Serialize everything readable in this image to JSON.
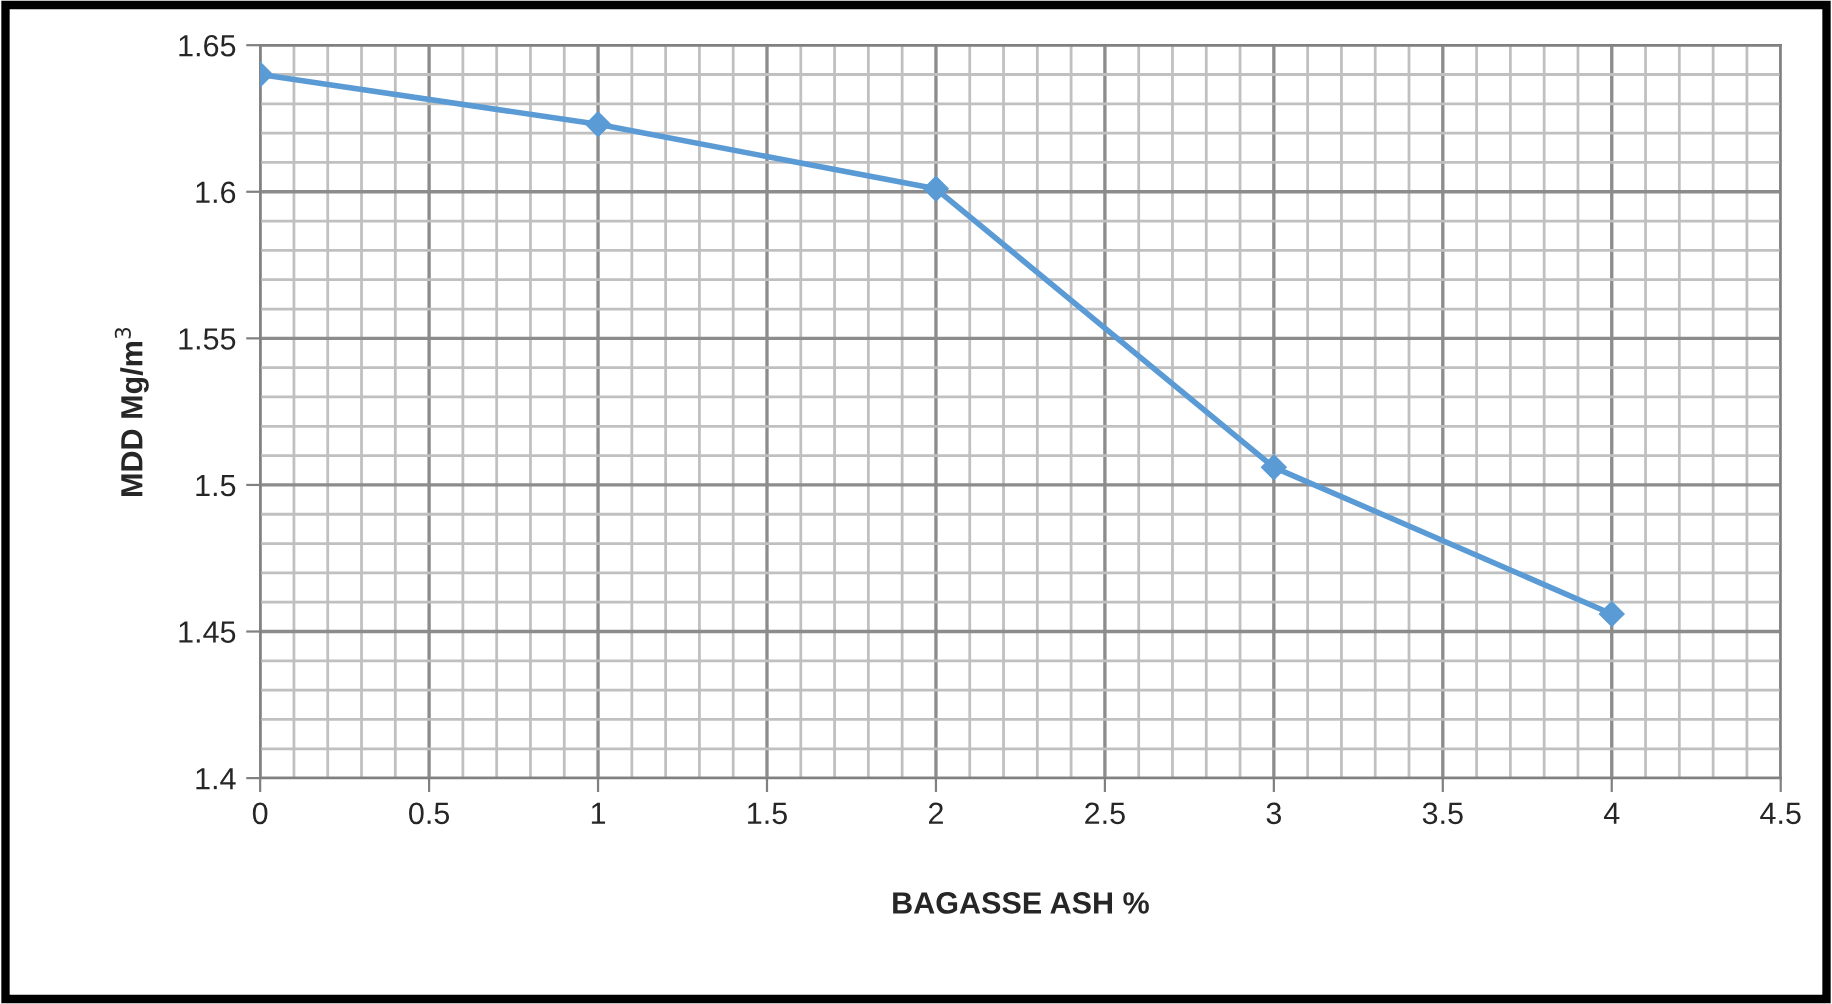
{
  "chart_data": {
    "type": "line",
    "xlabel": "BAGASSE ASH %",
    "ylabel": "MDD Mg/m$^{3}$",
    "x": [
      0,
      1,
      2,
      3,
      4
    ],
    "series": [
      {
        "color": "#5b9bd5",
        "values": [
          1.64,
          1.623,
          1.601,
          1.506,
          1.456
        ]
      }
    ],
    "xlim": [
      0,
      4.5
    ],
    "xticks": [
      0,
      0.5,
      1,
      1.5,
      2,
      2.5,
      3,
      3.5,
      4,
      4.5
    ],
    "ylim": [
      1.4,
      1.65
    ],
    "yticks": [
      1.4,
      1.45,
      1.5,
      1.55,
      1.6,
      1.65
    ],
    "grid": true,
    "marker": "diamond",
    "line_style": "solid",
    "legend": false
  }
}
